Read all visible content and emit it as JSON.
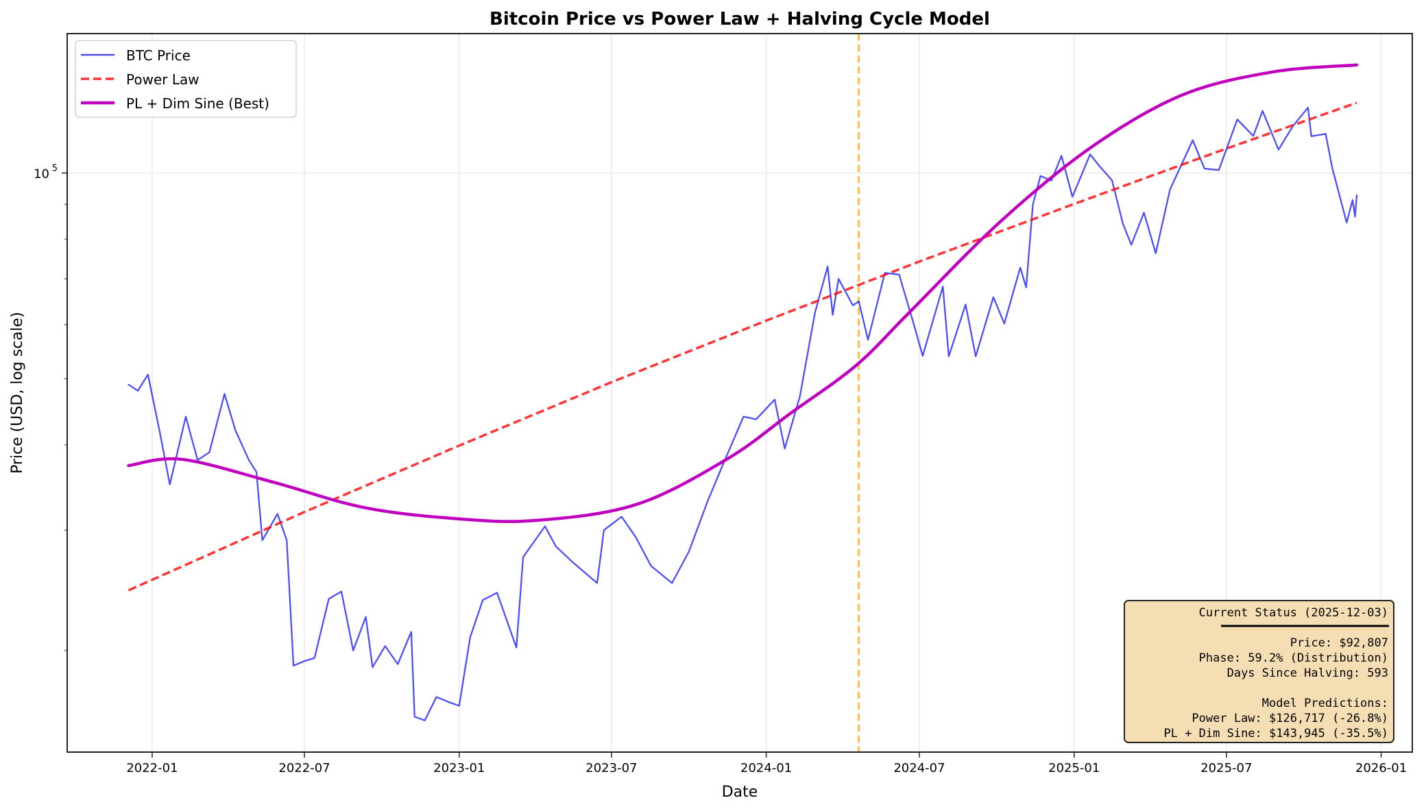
{
  "chart_data": {
    "type": "line",
    "title": "Bitcoin Price vs Power Law + Halving Cycle Model",
    "xlabel": "Date",
    "ylabel": "Price (USD, log scale)",
    "yscale": "log",
    "xlim": [
      "2021-09-22",
      "2026-02-07"
    ],
    "ylim": [
      14200,
      160000
    ],
    "grid": true,
    "legend_position": "upper-left",
    "x_ticks": [
      "2022-01",
      "2022-07",
      "2023-01",
      "2023-07",
      "2024-01",
      "2024-07",
      "2025-01",
      "2025-07",
      "2026-01"
    ],
    "y_ticks": [
      {
        "value": 100000,
        "label_base": "10",
        "label_exp": "5"
      }
    ],
    "y_minor_ticks": [
      20000,
      30000,
      40000,
      50000,
      60000,
      70000,
      80000,
      90000
    ],
    "halving_line": {
      "date": "2024-04-20",
      "color": "#ffa500"
    },
    "series": [
      {
        "name": "BTC Price",
        "color": "#0000ff",
        "style": "solid",
        "points": [
          [
            "2021-12-04",
            49000
          ],
          [
            "2021-12-15",
            48000
          ],
          [
            "2021-12-27",
            50700
          ],
          [
            "2022-01-10",
            41800
          ],
          [
            "2022-01-22",
            35000
          ],
          [
            "2022-02-10",
            44000
          ],
          [
            "2022-02-24",
            38000
          ],
          [
            "2022-03-10",
            39000
          ],
          [
            "2022-03-28",
            47500
          ],
          [
            "2022-04-10",
            42000
          ],
          [
            "2022-04-26",
            38000
          ],
          [
            "2022-05-05",
            36500
          ],
          [
            "2022-05-12",
            29000
          ],
          [
            "2022-05-30",
            31700
          ],
          [
            "2022-06-10",
            29000
          ],
          [
            "2022-06-18",
            19000
          ],
          [
            "2022-07-01",
            19300
          ],
          [
            "2022-07-13",
            19500
          ],
          [
            "2022-07-30",
            23800
          ],
          [
            "2022-08-14",
            24400
          ],
          [
            "2022-08-28",
            20000
          ],
          [
            "2022-09-12",
            22400
          ],
          [
            "2022-09-20",
            18900
          ],
          [
            "2022-10-05",
            20300
          ],
          [
            "2022-10-20",
            19100
          ],
          [
            "2022-11-05",
            21300
          ],
          [
            "2022-11-09",
            16000
          ],
          [
            "2022-11-21",
            15800
          ],
          [
            "2022-12-05",
            17100
          ],
          [
            "2022-12-20",
            16800
          ],
          [
            "2023-01-01",
            16600
          ],
          [
            "2023-01-14",
            20900
          ],
          [
            "2023-01-29",
            23700
          ],
          [
            "2023-02-15",
            24300
          ],
          [
            "2023-03-10",
            20200
          ],
          [
            "2023-03-18",
            27400
          ],
          [
            "2023-04-13",
            30400
          ],
          [
            "2023-04-26",
            28400
          ],
          [
            "2023-05-15",
            27000
          ],
          [
            "2023-06-14",
            25100
          ],
          [
            "2023-06-22",
            30000
          ],
          [
            "2023-07-13",
            31400
          ],
          [
            "2023-07-30",
            29300
          ],
          [
            "2023-08-17",
            26600
          ],
          [
            "2023-09-11",
            25100
          ],
          [
            "2023-10-01",
            27900
          ],
          [
            "2023-10-23",
            33000
          ],
          [
            "2023-11-10",
            37300
          ],
          [
            "2023-12-05",
            44000
          ],
          [
            "2023-12-20",
            43600
          ],
          [
            "2024-01-11",
            46600
          ],
          [
            "2024-01-23",
            39500
          ],
          [
            "2024-02-10",
            47100
          ],
          [
            "2024-02-28",
            62500
          ],
          [
            "2024-03-14",
            73000
          ],
          [
            "2024-03-20",
            62000
          ],
          [
            "2024-03-27",
            70000
          ],
          [
            "2024-04-13",
            64000
          ],
          [
            "2024-04-20",
            64900
          ],
          [
            "2024-05-01",
            57000
          ],
          [
            "2024-05-21",
            71400
          ],
          [
            "2024-06-07",
            71000
          ],
          [
            "2024-06-24",
            60300
          ],
          [
            "2024-07-05",
            54000
          ],
          [
            "2024-07-29",
            68200
          ],
          [
            "2024-08-05",
            53900
          ],
          [
            "2024-08-25",
            64200
          ],
          [
            "2024-09-06",
            53900
          ],
          [
            "2024-09-27",
            65800
          ],
          [
            "2024-10-10",
            60200
          ],
          [
            "2024-10-29",
            72700
          ],
          [
            "2024-11-05",
            68000
          ],
          [
            "2024-11-13",
            90000
          ],
          [
            "2024-11-22",
            99000
          ],
          [
            "2024-12-05",
            97500
          ],
          [
            "2024-12-17",
            106000
          ],
          [
            "2024-12-30",
            92300
          ],
          [
            "2025-01-20",
            106500
          ],
          [
            "2025-01-31",
            102400
          ],
          [
            "2025-02-15",
            97600
          ],
          [
            "2025-02-28",
            84300
          ],
          [
            "2025-03-10",
            78500
          ],
          [
            "2025-03-25",
            87500
          ],
          [
            "2025-04-08",
            76300
          ],
          [
            "2025-04-25",
            94600
          ],
          [
            "2025-05-22",
            111700
          ],
          [
            "2025-06-05",
            101500
          ],
          [
            "2025-06-22",
            101000
          ],
          [
            "2025-07-14",
            119800
          ],
          [
            "2025-08-02",
            113300
          ],
          [
            "2025-08-13",
            123300
          ],
          [
            "2025-09-01",
            108200
          ],
          [
            "2025-09-18",
            117100
          ],
          [
            "2025-10-06",
            124700
          ],
          [
            "2025-10-10",
            113200
          ],
          [
            "2025-10-27",
            114100
          ],
          [
            "2025-11-04",
            101600
          ],
          [
            "2025-11-21",
            84600
          ],
          [
            "2025-11-28",
            91300
          ],
          [
            "2025-12-01",
            86300
          ],
          [
            "2025-12-03",
            92807
          ]
        ]
      },
      {
        "name": "Power Law",
        "color": "#ff0000",
        "style": "dashed",
        "points": [
          [
            "2021-12-04",
            24500
          ],
          [
            "2022-07-01",
            31900
          ],
          [
            "2023-01-01",
            39900
          ],
          [
            "2023-07-01",
            49400
          ],
          [
            "2024-01-01",
            60800
          ],
          [
            "2024-07-01",
            74200
          ],
          [
            "2025-01-01",
            90100
          ],
          [
            "2025-07-01",
            108600
          ],
          [
            "2025-12-03",
            126717
          ]
        ]
      },
      {
        "name": "PL + Dim Sine (Best)",
        "color": "#bf00bf",
        "style": "solid-thick",
        "points": [
          [
            "2021-12-04",
            37300
          ],
          [
            "2022-02-05",
            38100
          ],
          [
            "2022-05-24",
            35300
          ],
          [
            "2022-09-09",
            32400
          ],
          [
            "2022-12-27",
            31200
          ],
          [
            "2023-04-01",
            31000
          ],
          [
            "2023-07-30",
            32700
          ],
          [
            "2023-11-15",
            38100
          ],
          [
            "2024-01-30",
            44500
          ],
          [
            "2024-04-17",
            52300
          ],
          [
            "2024-06-18",
            62300
          ],
          [
            "2024-10-04",
            84600
          ],
          [
            "2025-01-21",
            109000
          ],
          [
            "2025-05-09",
            130000
          ],
          [
            "2025-08-25",
            140600
          ],
          [
            "2025-12-03",
            143945
          ]
        ]
      }
    ],
    "annotation": {
      "title": "Current Status (2025-12-03)",
      "lines": [
        "Price: $92,807",
        "Phase: 59.2% (Distribution)",
        "Days Since Halving: 593",
        "",
        "Model Predictions:",
        "Power Law: $126,717 (-26.8%)",
        "PL + Dim Sine: $143,945 (-35.5%)"
      ],
      "background": "#f5deb3"
    }
  }
}
